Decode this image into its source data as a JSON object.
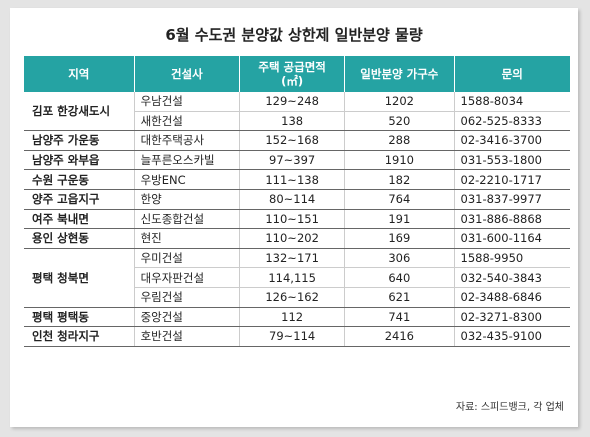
{
  "title": "6월 수도권 분양값 상한제 일반분양 물량",
  "table": {
    "header": [
      "지역",
      "건설사",
      [
        "주택 공급면적",
        "(㎡)"
      ],
      "일반분양 가구수",
      "문의"
    ],
    "groups": [
      {
        "region": "김포 한강새도시",
        "rows": [
          [
            "우남건설",
            "129~248",
            1202,
            "1588-8034"
          ],
          [
            "새한건설",
            "138",
            520,
            "062-525-8333"
          ]
        ]
      },
      {
        "region": "남양주 가운동",
        "rows": [
          [
            "대한주택공사",
            "152~168",
            288,
            "02-3416-3700"
          ]
        ]
      },
      {
        "region": "남양주 와부읍",
        "rows": [
          [
            "늘푸른오스카빌",
            "97~397",
            1910,
            "031-553-1800"
          ]
        ]
      },
      {
        "region": "수원 구운동",
        "rows": [
          [
            "우방ENC",
            "111~138",
            182,
            "02-2210-1717"
          ]
        ]
      },
      {
        "region": "양주 고읍지구",
        "rows": [
          [
            "한양",
            "80~114",
            764,
            "031-837-9977"
          ]
        ]
      },
      {
        "region": "여주 북내면",
        "rows": [
          [
            "신도종합건설",
            "110~151",
            191,
            "031-886-8868"
          ]
        ]
      },
      {
        "region": "용인 상현동",
        "rows": [
          [
            "현진",
            "110~202",
            169,
            "031-600-1164"
          ]
        ]
      },
      {
        "region": "평택 청북면",
        "rows": [
          [
            "우미건설",
            "132~171",
            306,
            "1588-9950"
          ],
          [
            "대우자판건설",
            "114,115",
            640,
            "032-540-3843"
          ],
          [
            "우림건설",
            "126~162",
            621,
            "02-3488-6846"
          ]
        ]
      },
      {
        "region": "평택 평택동",
        "rows": [
          [
            "중앙건설",
            "112",
            741,
            "02-3271-8300"
          ]
        ]
      },
      {
        "region": "인천 청라지구",
        "rows": [
          [
            "호반건설",
            "79~114",
            2416,
            "032-435-9100"
          ]
        ]
      }
    ]
  },
  "source": "자료: 스피드뱅크, 각 업체"
}
